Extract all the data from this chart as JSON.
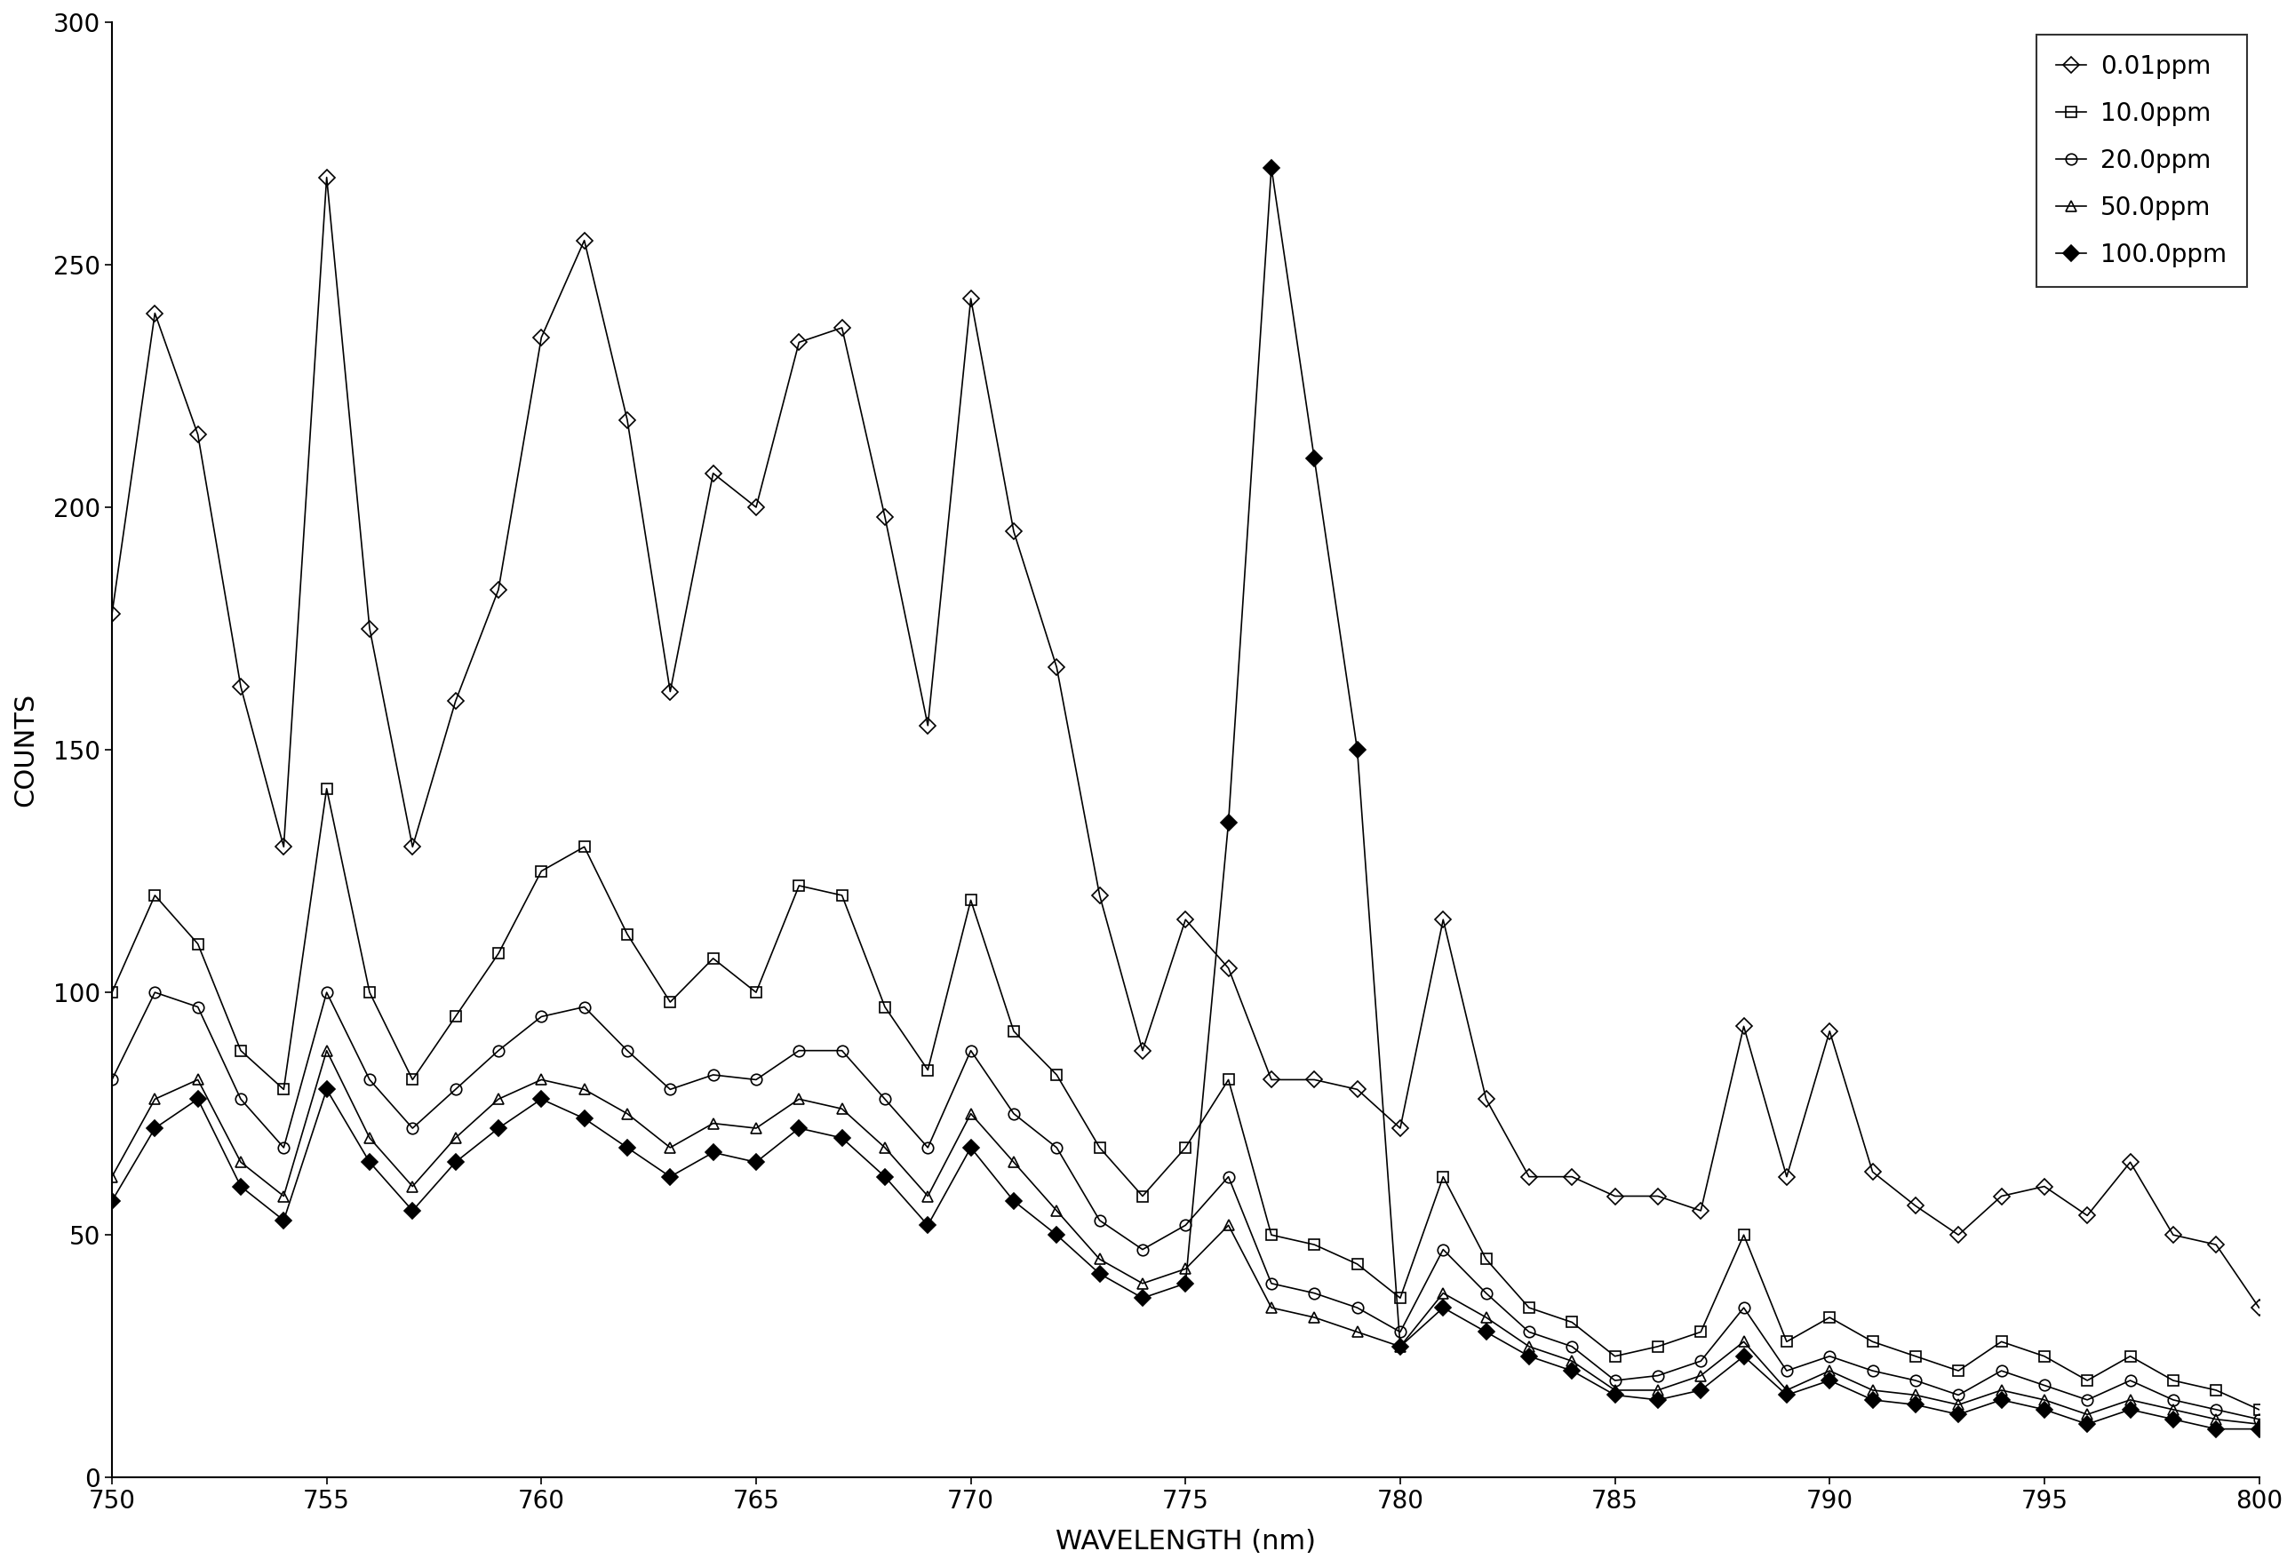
{
  "xlabel": "WAVELENGTH (nm)",
  "ylabel": "COUNTS",
  "xlim": [
    750,
    800
  ],
  "ylim": [
    0,
    300
  ],
  "yticks": [
    0,
    50,
    100,
    150,
    200,
    250,
    300
  ],
  "xticks": [
    750,
    755,
    760,
    765,
    770,
    775,
    780,
    785,
    790,
    795,
    800
  ],
  "background_color": "#ffffff",
  "line_color": "#000000",
  "legend_labels": [
    "0.01ppm",
    "10.0ppm",
    "20.0ppm",
    "50.0ppm",
    "100.0ppm"
  ],
  "series": {
    "ppm_0_01": {
      "x": [
        750,
        751,
        752,
        753,
        754,
        755,
        756,
        757,
        758,
        759,
        760,
        761,
        762,
        763,
        764,
        765,
        766,
        767,
        768,
        769,
        770,
        771,
        772,
        773,
        774,
        775,
        776,
        777,
        778,
        779,
        780,
        781,
        782,
        783,
        784,
        785,
        786,
        787,
        788,
        789,
        790,
        791,
        792,
        793,
        794,
        795,
        796,
        797,
        798,
        799,
        800
      ],
      "y": [
        178,
        240,
        215,
        163,
        130,
        268,
        175,
        130,
        160,
        183,
        235,
        255,
        218,
        162,
        207,
        200,
        234,
        237,
        198,
        155,
        243,
        195,
        167,
        120,
        88,
        115,
        105,
        82,
        82,
        80,
        72,
        115,
        78,
        62,
        62,
        58,
        58,
        55,
        93,
        62,
        92,
        63,
        56,
        50,
        58,
        60,
        54,
        65,
        50,
        48,
        35
      ]
    },
    "ppm_10": {
      "x": [
        750,
        751,
        752,
        753,
        754,
        755,
        756,
        757,
        758,
        759,
        760,
        761,
        762,
        763,
        764,
        765,
        766,
        767,
        768,
        769,
        770,
        771,
        772,
        773,
        774,
        775,
        776,
        777,
        778,
        779,
        780,
        781,
        782,
        783,
        784,
        785,
        786,
        787,
        788,
        789,
        790,
        791,
        792,
        793,
        794,
        795,
        796,
        797,
        798,
        799,
        800
      ],
      "y": [
        100,
        120,
        110,
        88,
        80,
        142,
        100,
        82,
        95,
        108,
        125,
        130,
        112,
        98,
        107,
        100,
        122,
        120,
        97,
        84,
        119,
        92,
        83,
        68,
        58,
        68,
        82,
        50,
        48,
        44,
        37,
        62,
        45,
        35,
        32,
        25,
        27,
        30,
        50,
        28,
        33,
        28,
        25,
        22,
        28,
        25,
        20,
        25,
        20,
        18,
        14
      ]
    },
    "ppm_20": {
      "x": [
        750,
        751,
        752,
        753,
        754,
        755,
        756,
        757,
        758,
        759,
        760,
        761,
        762,
        763,
        764,
        765,
        766,
        767,
        768,
        769,
        770,
        771,
        772,
        773,
        774,
        775,
        776,
        777,
        778,
        779,
        780,
        781,
        782,
        783,
        784,
        785,
        786,
        787,
        788,
        789,
        790,
        791,
        792,
        793,
        794,
        795,
        796,
        797,
        798,
        799,
        800
      ],
      "y": [
        82,
        100,
        97,
        78,
        68,
        100,
        82,
        72,
        80,
        88,
        95,
        97,
        88,
        80,
        83,
        82,
        88,
        88,
        78,
        68,
        88,
        75,
        68,
        53,
        47,
        52,
        62,
        40,
        38,
        35,
        30,
        47,
        38,
        30,
        27,
        20,
        21,
        24,
        35,
        22,
        25,
        22,
        20,
        17,
        22,
        19,
        16,
        20,
        16,
        14,
        12
      ]
    },
    "ppm_50": {
      "x": [
        750,
        751,
        752,
        753,
        754,
        755,
        756,
        757,
        758,
        759,
        760,
        761,
        762,
        763,
        764,
        765,
        766,
        767,
        768,
        769,
        770,
        771,
        772,
        773,
        774,
        775,
        776,
        777,
        778,
        779,
        780,
        781,
        782,
        783,
        784,
        785,
        786,
        787,
        788,
        789,
        790,
        791,
        792,
        793,
        794,
        795,
        796,
        797,
        798,
        799,
        800
      ],
      "y": [
        62,
        78,
        82,
        65,
        58,
        88,
        70,
        60,
        70,
        78,
        82,
        80,
        75,
        68,
        73,
        72,
        78,
        76,
        68,
        58,
        75,
        65,
        55,
        45,
        40,
        43,
        52,
        35,
        33,
        30,
        27,
        38,
        33,
        27,
        24,
        18,
        18,
        21,
        28,
        18,
        22,
        18,
        17,
        15,
        18,
        16,
        13,
        16,
        14,
        12,
        11
      ]
    },
    "ppm_100": {
      "x": [
        750,
        751,
        752,
        753,
        754,
        755,
        756,
        757,
        758,
        759,
        760,
        761,
        762,
        763,
        764,
        765,
        766,
        767,
        768,
        769,
        770,
        771,
        772,
        773,
        774,
        775,
        776,
        777,
        778,
        779,
        780,
        781,
        782,
        783,
        784,
        785,
        786,
        787,
        788,
        789,
        790,
        791,
        792,
        793,
        794,
        795,
        796,
        797,
        798,
        799,
        800
      ],
      "y": [
        57,
        72,
        78,
        60,
        53,
        80,
        65,
        55,
        65,
        72,
        78,
        74,
        68,
        62,
        67,
        65,
        72,
        70,
        62,
        52,
        68,
        57,
        50,
        42,
        37,
        40,
        135,
        270,
        210,
        150,
        27,
        35,
        30,
        25,
        22,
        17,
        16,
        18,
        25,
        17,
        20,
        16,
        15,
        13,
        16,
        14,
        11,
        14,
        12,
        10,
        10
      ]
    }
  }
}
